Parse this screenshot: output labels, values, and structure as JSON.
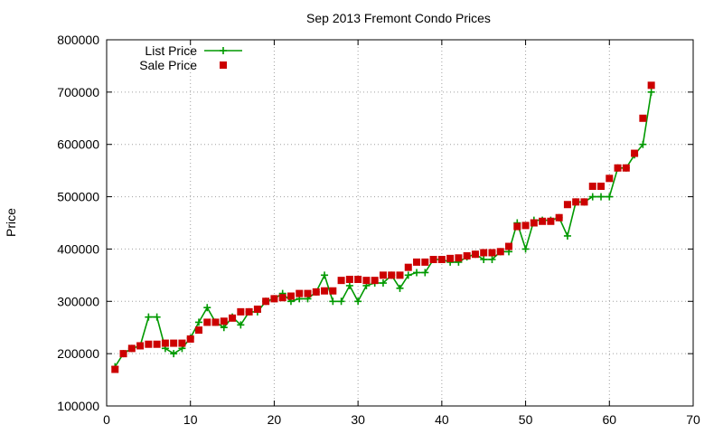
{
  "chart_data": {
    "type": "scatter",
    "title": "Sep 2013 Fremont Condo Prices",
    "xlabel": "",
    "ylabel": "Price",
    "xlim": [
      0,
      70
    ],
    "ylim": [
      100000,
      800000
    ],
    "xticks": [
      0,
      10,
      20,
      30,
      40,
      50,
      60,
      70
    ],
    "yticks": [
      100000,
      200000,
      300000,
      400000,
      500000,
      600000,
      700000,
      800000
    ],
    "grid": true,
    "legend_position": "top-left",
    "x": [
      1,
      2,
      3,
      4,
      5,
      6,
      7,
      8,
      9,
      10,
      11,
      12,
      13,
      14,
      15,
      16,
      17,
      18,
      19,
      20,
      21,
      22,
      23,
      24,
      25,
      26,
      27,
      28,
      29,
      30,
      31,
      32,
      33,
      34,
      35,
      36,
      37,
      38,
      39,
      40,
      41,
      42,
      43,
      44,
      45,
      46,
      47,
      48,
      49,
      50,
      51,
      52,
      53,
      54,
      55,
      56,
      57,
      58,
      59,
      60,
      61,
      62,
      63,
      64,
      65
    ],
    "series": [
      {
        "name": "List Price",
        "style": "line-plus",
        "color": "#009900",
        "values": [
          175000,
          200000,
          210000,
          215000,
          270000,
          270000,
          210000,
          200000,
          210000,
          230000,
          260000,
          288000,
          260000,
          250000,
          270000,
          255000,
          280000,
          280000,
          300000,
          305000,
          315000,
          300000,
          305000,
          305000,
          318000,
          350000,
          300000,
          300000,
          330000,
          300000,
          330000,
          335000,
          335000,
          350000,
          325000,
          350000,
          355000,
          355000,
          380000,
          380000,
          375000,
          375000,
          385000,
          390000,
          380000,
          380000,
          395000,
          395000,
          450000,
          400000,
          455000,
          455000,
          455000,
          460000,
          425000,
          490000,
          490000,
          500000,
          500000,
          500000,
          555000,
          555000,
          580000,
          600000,
          700000
        ]
      },
      {
        "name": "Sale Price",
        "style": "square",
        "color": "#cc0000",
        "values": [
          170000,
          200000,
          210000,
          215000,
          218000,
          218000,
          220000,
          220000,
          220000,
          228000,
          245000,
          260000,
          260000,
          262000,
          268000,
          280000,
          280000,
          285000,
          300000,
          305000,
          307000,
          310000,
          315000,
          315000,
          318000,
          320000,
          320000,
          340000,
          342000,
          342000,
          340000,
          340000,
          350000,
          350000,
          350000,
          365000,
          375000,
          375000,
          380000,
          380000,
          382000,
          383000,
          387000,
          390000,
          393000,
          393000,
          395000,
          405000,
          443000,
          445000,
          450000,
          453000,
          453000,
          460000,
          485000,
          490000,
          490000,
          520000,
          520000,
          535000,
          555000,
          555000,
          583000,
          650000,
          713000
        ]
      }
    ]
  }
}
